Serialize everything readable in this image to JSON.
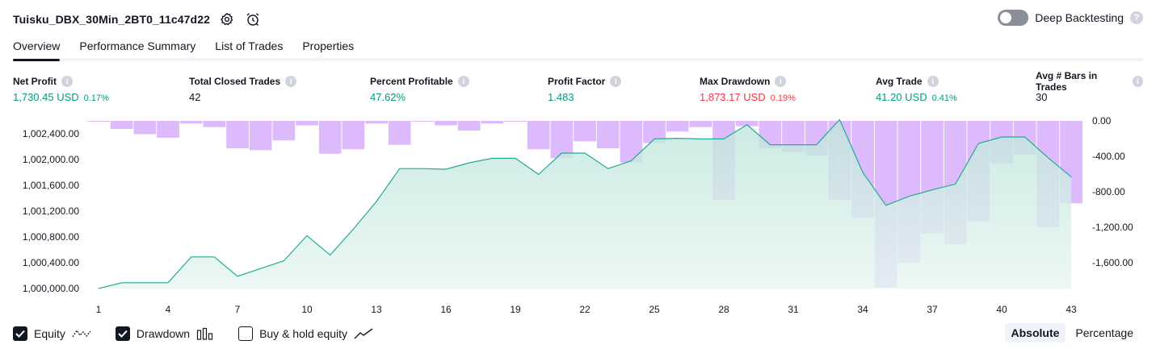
{
  "header": {
    "title": "Tuisku_DBX_30Min_2BT0_11c47d22",
    "deep_backtesting_label": "Deep Backtesting",
    "help_mark": "?"
  },
  "tabs": [
    {
      "label": "Overview",
      "active": true
    },
    {
      "label": "Performance Summary",
      "active": false
    },
    {
      "label": "List of Trades",
      "active": false
    },
    {
      "label": "Properties",
      "active": false
    }
  ],
  "stats": [
    {
      "label": "Net Profit",
      "value": "1,730.45 USD",
      "pct": "0.17%",
      "color": "green"
    },
    {
      "label": "Total Closed Trades",
      "value": "42",
      "pct": "",
      "color": "dark"
    },
    {
      "label": "Percent Profitable",
      "value": "47.62%",
      "pct": "",
      "color": "green"
    },
    {
      "label": "Profit Factor",
      "value": "1.483",
      "pct": "",
      "color": "green"
    },
    {
      "label": "Max Drawdown",
      "value": "1,873.17 USD",
      "pct": "0.19%",
      "color": "red"
    },
    {
      "label": "Avg Trade",
      "value": "41.20 USD",
      "pct": "0.41%",
      "color": "green"
    },
    {
      "label": "Avg # Bars in Trades",
      "value": "30",
      "pct": "",
      "color": "dark"
    }
  ],
  "info_mark": "i",
  "colors": {
    "positive": "#089981",
    "negative": "#f23645",
    "equity_line": "#22ab94",
    "equity_fill": "#d5efe8",
    "drawdown_bar": "#d9b3fb"
  },
  "chart_data": {
    "type": "line",
    "x_ticks": [
      "1",
      "4",
      "7",
      "10",
      "13",
      "16",
      "19",
      "22",
      "25",
      "28",
      "31",
      "34",
      "37",
      "40",
      "43"
    ],
    "left_axis": {
      "ticks": [
        "1,000,000.00",
        "1,000,400.00",
        "1,000,800.00",
        "1,001,200.00",
        "1,001,600.00",
        "1,002,000.00",
        "1,002,400.00"
      ],
      "ylim": [
        1000000,
        1002600
      ]
    },
    "right_axis": {
      "ticks": [
        "0.00",
        "-400.00",
        "-800.00",
        "-1,200.00",
        "-1,600.00"
      ],
      "ylim": [
        -1890,
        0
      ]
    },
    "equity": {
      "name": "Equity",
      "x": [
        1,
        2,
        3,
        4,
        5,
        6,
        7,
        8,
        9,
        10,
        11,
        12,
        13,
        14,
        15,
        16,
        17,
        18,
        19,
        20,
        21,
        22,
        23,
        24,
        25,
        26,
        27,
        28,
        29,
        30,
        31,
        32,
        33,
        34,
        35,
        36,
        37,
        38,
        39,
        40,
        41,
        42,
        43
      ],
      "values": [
        1000000,
        1000090,
        1000090,
        1000090,
        1000490,
        1000490,
        1000190,
        1000310,
        1000430,
        1000820,
        1000520,
        1000920,
        1001350,
        1001860,
        1001860,
        1001850,
        1001950,
        1002020,
        1002020,
        1001770,
        1002100,
        1002100,
        1001860,
        1001980,
        1002320,
        1002330,
        1002320,
        1002320,
        1002540,
        1002230,
        1002230,
        1002230,
        1002620,
        1001800,
        1001290,
        1001430,
        1001530,
        1001620,
        1002250,
        1002350,
        1002350,
        1002030,
        1001730
      ]
    },
    "drawdown": {
      "name": "Drawdown",
      "x": [
        1,
        2,
        3,
        4,
        5,
        6,
        7,
        8,
        9,
        10,
        11,
        12,
        13,
        14,
        15,
        16,
        17,
        18,
        19,
        20,
        21,
        22,
        23,
        24,
        25,
        26,
        27,
        28,
        29,
        30,
        31,
        32,
        33,
        34,
        35,
        36,
        37,
        38,
        39,
        40,
        41,
        42,
        43
      ],
      "values": [
        -10,
        -90,
        -150,
        -190,
        -30,
        -70,
        -310,
        -330,
        -220,
        -50,
        -370,
        -320,
        -30,
        -270,
        0,
        -50,
        -110,
        -30,
        0,
        -320,
        -420,
        -230,
        -310,
        -470,
        -250,
        -120,
        -70,
        -890,
        -60,
        -310,
        -350,
        -390,
        -890,
        -1090,
        -1880,
        -1600,
        -1270,
        -1390,
        -1130,
        -480,
        -380,
        -1200,
        -930
      ]
    },
    "legend": [
      {
        "label": "Equity",
        "checked": true,
        "icon": "equity-line-icon"
      },
      {
        "label": "Drawdown",
        "checked": true,
        "icon": "drawdown-bars-icon"
      },
      {
        "label": "Buy & hold equity",
        "checked": false,
        "icon": "buy-hold-line-icon"
      }
    ],
    "modes": [
      {
        "label": "Absolute",
        "active": true
      },
      {
        "label": "Percentage",
        "active": false
      }
    ]
  }
}
